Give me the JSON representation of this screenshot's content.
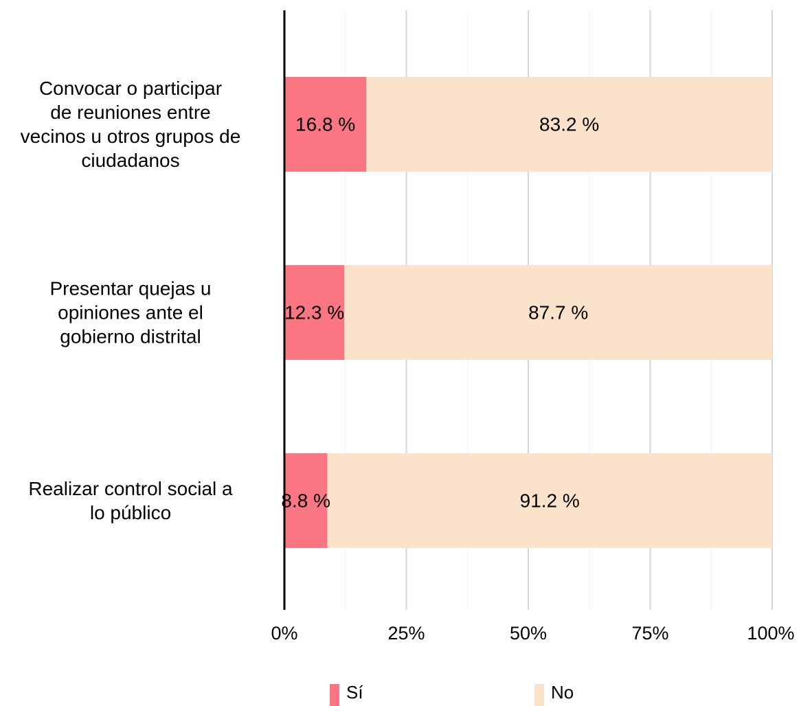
{
  "chart_data": {
    "type": "bar",
    "orientation": "horizontal",
    "stacked": true,
    "normalized": true,
    "categories": [
      [
        "Convocar o participar",
        "de reuniones entre",
        "vecinos u otros grupos de",
        "ciudadanos"
      ],
      [
        "Presentar quejas u",
        "opiniones ante el",
        "gobierno distrital"
      ],
      [
        "Realizar control social a",
        "lo público"
      ]
    ],
    "series": [
      {
        "name": "Sí",
        "values": [
          16.8,
          12.3,
          8.8
        ],
        "labels": [
          "16.8 %",
          "12.3 %",
          "8.8 %"
        ],
        "color": "#fb7683"
      },
      {
        "name": "No",
        "values": [
          83.2,
          87.7,
          91.2
        ],
        "labels": [
          "83.2 %",
          "87.7 %",
          "91.2 %"
        ],
        "color": "#fbe3cb"
      }
    ],
    "xlim": [
      0,
      100
    ],
    "xticks": [
      0,
      25,
      50,
      75,
      100
    ],
    "xtick_labels": [
      "0%",
      "25%",
      "50%",
      "75%",
      "100%"
    ],
    "grid": true,
    "legend_position": "bottom",
    "title": "",
    "xlabel": "",
    "ylabel": ""
  }
}
